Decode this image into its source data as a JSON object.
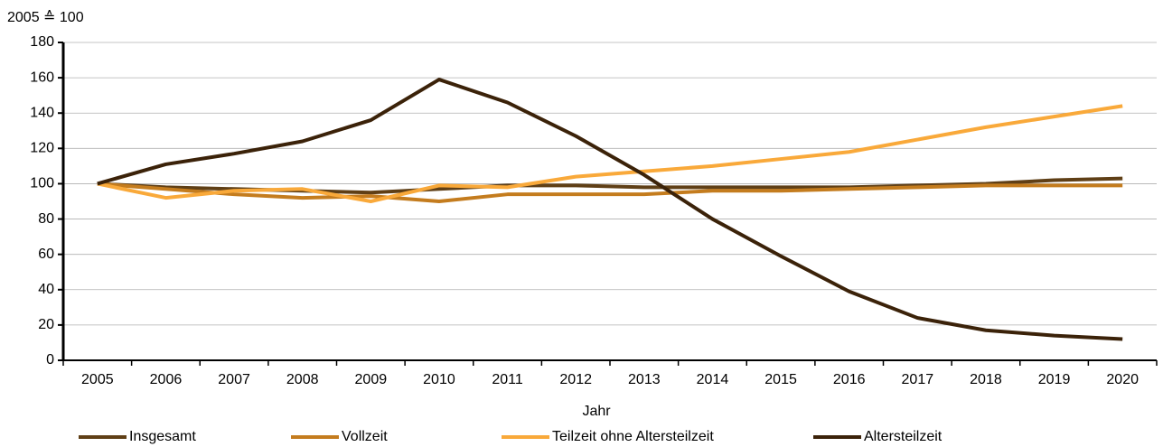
{
  "chart_data": {
    "type": "line",
    "y_axis_label": "2005 ≙ 100",
    "x_axis_label": "Jahr",
    "categories": [
      "2005",
      "2006",
      "2007",
      "2008",
      "2009",
      "2010",
      "2011",
      "2012",
      "2013",
      "2014",
      "2015",
      "2016",
      "2017",
      "2018",
      "2019",
      "2020"
    ],
    "series": [
      {
        "name": "Insgesamt",
        "color": "#5f3f16",
        "values": [
          100,
          98,
          97,
          96,
          95,
          97,
          99,
          99,
          98,
          98,
          98,
          98,
          99,
          100,
          102,
          103
        ]
      },
      {
        "name": "Vollzeit",
        "color": "#c47c1e",
        "values": [
          100,
          97,
          94,
          92,
          93,
          90,
          94,
          94,
          94,
          96,
          96,
          97,
          98,
          99,
          99,
          99
        ]
      },
      {
        "name": "Teilzeit ohne Altersteilzeit",
        "color": "#f9a93a",
        "values": [
          100,
          92,
          96,
          97,
          90,
          99,
          98,
          104,
          107,
          110,
          114,
          118,
          125,
          132,
          138,
          144
        ]
      },
      {
        "name": "Altersteilzeit",
        "color": "#3b2209",
        "values": [
          100,
          111,
          117,
          124,
          136,
          159,
          146,
          127,
          105,
          80,
          59,
          39,
          24,
          17,
          14,
          12
        ]
      }
    ],
    "ylim": [
      0,
      180
    ],
    "yticks": [
      0,
      20,
      40,
      60,
      80,
      100,
      120,
      140,
      160,
      180
    ],
    "grid": true,
    "legend": "bottom"
  }
}
